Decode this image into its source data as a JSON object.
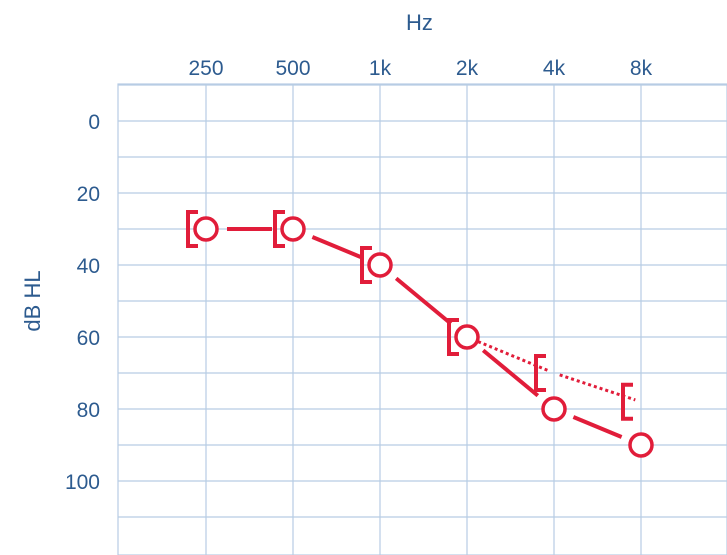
{
  "chart_data": {
    "type": "line",
    "title": "",
    "xlabel": "Hz",
    "ylabel": "dB HL",
    "categories": [
      "250",
      "500",
      "1k",
      "2k",
      "4k",
      "8k"
    ],
    "ylim": [
      -10,
      115
    ],
    "y_inverted": true,
    "y_ticks": [
      0,
      20,
      40,
      60,
      80,
      100
    ],
    "grid": true,
    "legend": "none",
    "colors": {
      "axis_text": "#2d5b8f",
      "grid": "#b7cce4",
      "data": "#e11d3a",
      "background": "#ffffff"
    },
    "series": [
      {
        "marker": "circle",
        "line": "solid",
        "values": [
          30,
          30,
          40,
          60,
          80,
          90
        ]
      },
      {
        "marker": "bracket",
        "line": "solid",
        "values": [
          30,
          30,
          40,
          60,
          null,
          null
        ]
      },
      {
        "marker": "bracket",
        "line": "dotted",
        "values": [
          null,
          null,
          null,
          60,
          70,
          78
        ]
      }
    ]
  }
}
